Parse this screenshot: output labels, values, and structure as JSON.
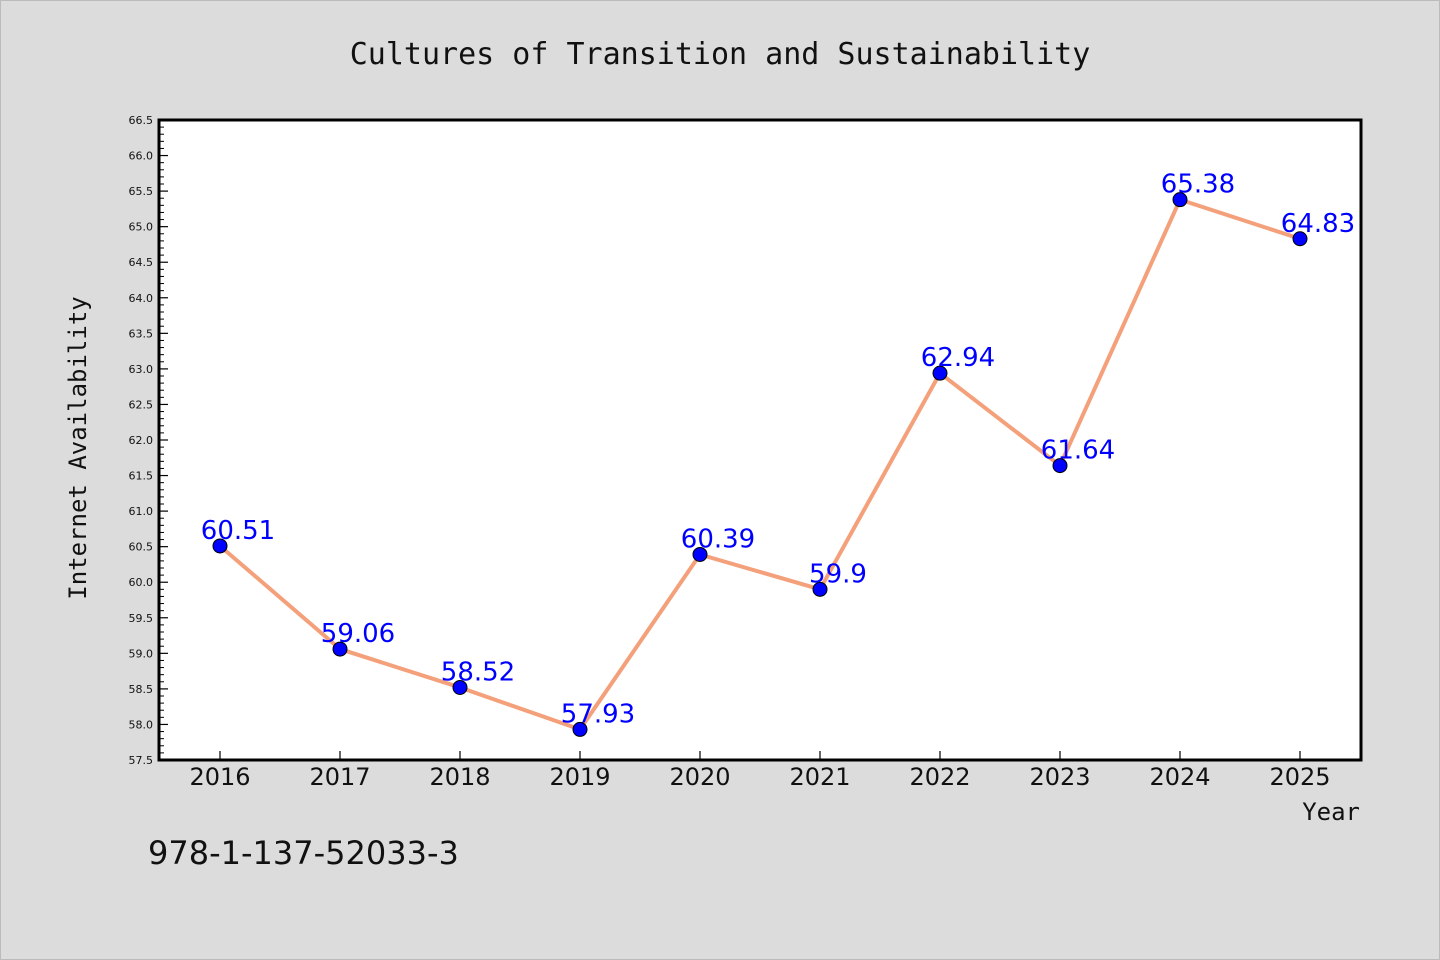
{
  "chart_data": {
    "type": "line",
    "title": "Cultures of Transition and Sustainability",
    "xlabel": "Year",
    "ylabel": "Internet Availability",
    "categories": [
      "2016",
      "2017",
      "2018",
      "2019",
      "2020",
      "2021",
      "2022",
      "2023",
      "2024",
      "2025"
    ],
    "series": [
      {
        "values": [
          60.51,
          59.06,
          58.52,
          57.93,
          60.39,
          59.9,
          62.94,
          61.64,
          65.38,
          64.83
        ],
        "data_labels": [
          "60.51",
          "59.06",
          "58.52",
          "57.93",
          "60.39",
          "59.9",
          "62.94",
          "61.64",
          "65.38",
          "64.83"
        ],
        "line_color": "#f4a07a",
        "marker_color": "#0000ff"
      }
    ],
    "ylim": [
      57.5,
      66.5
    ],
    "yticks": [
      "57.5",
      "58.0",
      "58.5",
      "59.0",
      "59.5",
      "60.0",
      "60.5",
      "61.0",
      "61.5",
      "62.0",
      "62.5",
      "63.0",
      "63.5",
      "64.0",
      "64.5",
      "65.0",
      "65.5",
      "66.0",
      "66.5"
    ],
    "grid": false,
    "legend": "none",
    "annotation": "978-1-137-52033-3",
    "background_color": "#dcdcdc",
    "plot_background": "#ffffff",
    "label_color": "#0000ff"
  }
}
